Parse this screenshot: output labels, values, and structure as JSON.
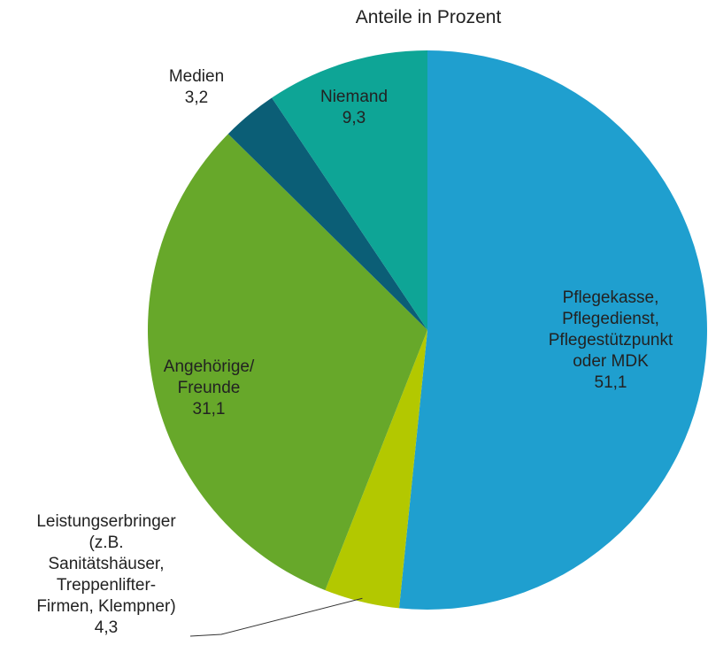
{
  "chart_data": {
    "type": "pie",
    "title": "Anteile in Prozent",
    "categories": [
      "Pflegekasse,\nPflegedienst,\nPflegestützpunkt\noder MDK",
      "Leistungserbringer\n(z.B.\nSanitätshäuser,\nTreppenlifter-\nFirmen, Klempner)",
      "Angehörige/\nFreunde",
      "Medien",
      "Niemand"
    ],
    "values": [
      51.1,
      4.3,
      31.1,
      3.2,
      9.3
    ],
    "value_labels": [
      "51,1",
      "4,3",
      "31,1",
      "3,2",
      "9,3"
    ],
    "colors": [
      "#1f9fcf",
      "#b3c800",
      "#67a82a",
      "#0b5e76",
      "#0ea596"
    ]
  }
}
